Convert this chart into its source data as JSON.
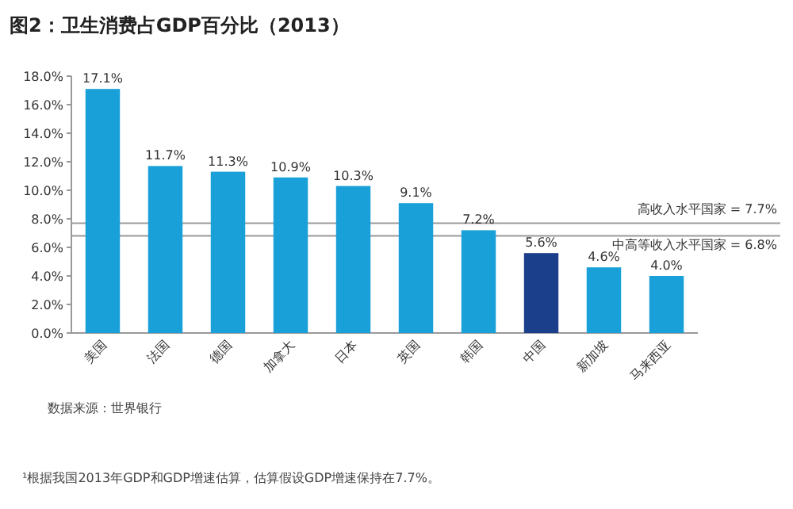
{
  "chart_data": {
    "type": "bar",
    "title": "图2：卫生消费占GDP百分比（2013）",
    "categories": [
      "美国",
      "法国",
      "德国",
      "加拿大",
      "日本",
      "英国",
      "韩国",
      "中国",
      "新加坡",
      "马来西亚"
    ],
    "values": [
      17.1,
      11.7,
      11.3,
      10.9,
      10.3,
      9.1,
      7.2,
      5.6,
      4.6,
      4.0
    ],
    "colors": [
      "#1aa0d8",
      "#1aa0d8",
      "#1aa0d8",
      "#1aa0d8",
      "#1aa0d8",
      "#1aa0d8",
      "#1aa0d8",
      "#1b3f8b",
      "#1aa0d8",
      "#1aa0d8"
    ],
    "value_labels": [
      "17.1%",
      "11.7%",
      "11.3%",
      "10.9%",
      "10.3%",
      "9.1%",
      "7.2%",
      "5.6%",
      "4.6%",
      "4.0%"
    ],
    "ylim": [
      0,
      18
    ],
    "yticks": [
      {
        "value": 0,
        "label": "0.0%"
      },
      {
        "value": 2,
        "label": "2.0%"
      },
      {
        "value": 4,
        "label": "4.0%"
      },
      {
        "value": 6,
        "label": "6.0%"
      },
      {
        "value": 8,
        "label": "8.0%"
      },
      {
        "value": 10,
        "label": "10.0%"
      },
      {
        "value": 12,
        "label": "12.0%"
      },
      {
        "value": 14,
        "label": "14.0%"
      },
      {
        "value": 16,
        "label": "16.0%"
      },
      {
        "value": 18,
        "label": "18.0%"
      }
    ],
    "ref_lines": [
      {
        "axis": "y",
        "value": 7.7,
        "label": "高收入水平国家 = 7.7%",
        "color": "#9a9a9a"
      },
      {
        "axis": "y",
        "value": 6.8,
        "label": "中高等收入水平国家 = 6.8%",
        "color": "#9a9a9a"
      }
    ],
    "annotations": [
      "数据来源：世界银行",
      "¹根据我国2013年GDP和GDP增速估算，估算假设GDP增速保持在7.7%。"
    ]
  }
}
